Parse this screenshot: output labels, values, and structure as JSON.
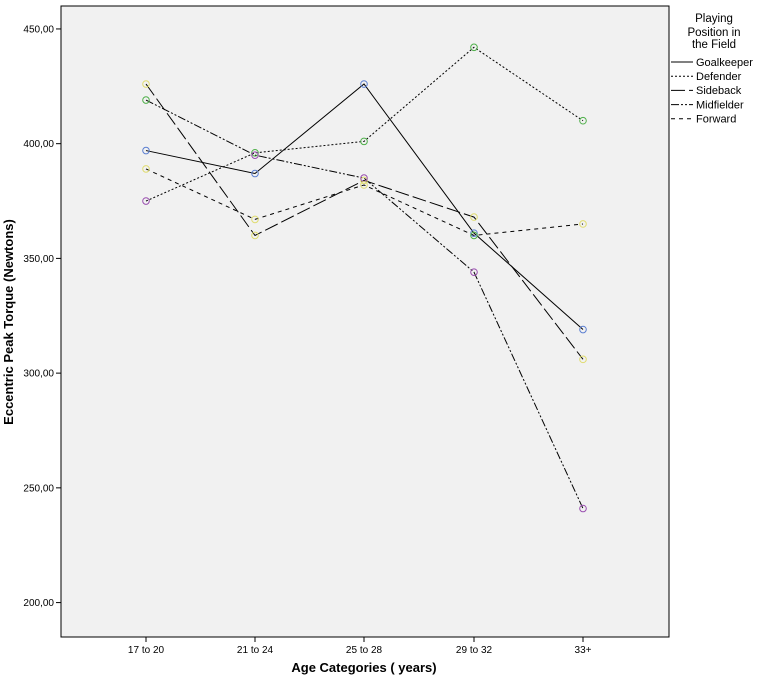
{
  "chart_data": {
    "type": "line",
    "title": "",
    "xlabel": "Age Categories ( years)",
    "ylabel": "Eccentric Peak Torque (Newtons)",
    "categories": [
      "17 to 20",
      "21 to 24",
      "25 to 28",
      "29 to 32",
      "33+"
    ],
    "ylim": [
      185,
      460
    ],
    "y_ticks": [
      200,
      250,
      300,
      350,
      400,
      450
    ],
    "y_tick_labels": [
      "200,00",
      "250,00",
      "300,00",
      "350,00",
      "400,00",
      "450,00"
    ],
    "grid": false,
    "background": "#f1f1f1",
    "legend": {
      "title_lines": [
        "Playing",
        "Position in",
        "the Field"
      ],
      "placement": "right"
    },
    "series": [
      {
        "name": "Goalkeeper",
        "values": [
          397,
          387,
          426,
          361,
          319
        ],
        "dash": "solid",
        "marker_color": "#5b7fd1"
      },
      {
        "name": "Defender",
        "values": [
          375,
          396,
          401,
          442,
          410
        ],
        "dash": "dotted",
        "marker_color": "#4fb04a"
      },
      {
        "name": "Sideback",
        "values": [
          426,
          360,
          384,
          368,
          306
        ],
        "dash": "long-dash",
        "marker_color": "#e0dc70"
      },
      {
        "name": "Midfielder",
        "values": [
          419,
          395,
          385,
          344,
          241
        ],
        "dash": "dash-dot-dot",
        "marker_color": "#9a4fb0"
      },
      {
        "name": "Forward",
        "values": [
          389,
          367,
          382,
          360,
          365
        ],
        "dash": "short-dash",
        "marker_color": "#e0dc70"
      }
    ],
    "marker_colors_by_point": [
      [
        "#5b7fd1",
        "#5b7fd1",
        "#5b7fd1",
        "#5b7fd1",
        "#5b7fd1"
      ],
      [
        "#9a4fb0",
        "#4fb04a",
        "#4fb04a",
        "#4fb04a",
        "#4fb04a"
      ],
      [
        "#e0dc70",
        "#e0dc70",
        "#e0dc70",
        "#e0dc70",
        "#e0dc70"
      ],
      [
        "#4fb04a",
        "#9a4fb0",
        "#9a4fb0",
        "#9a4fb0",
        "#9a4fb0"
      ],
      [
        "#e0dc70",
        "#e0dc70",
        "#e0dc70",
        "#4fb04a",
        "#e0dc70"
      ]
    ]
  }
}
